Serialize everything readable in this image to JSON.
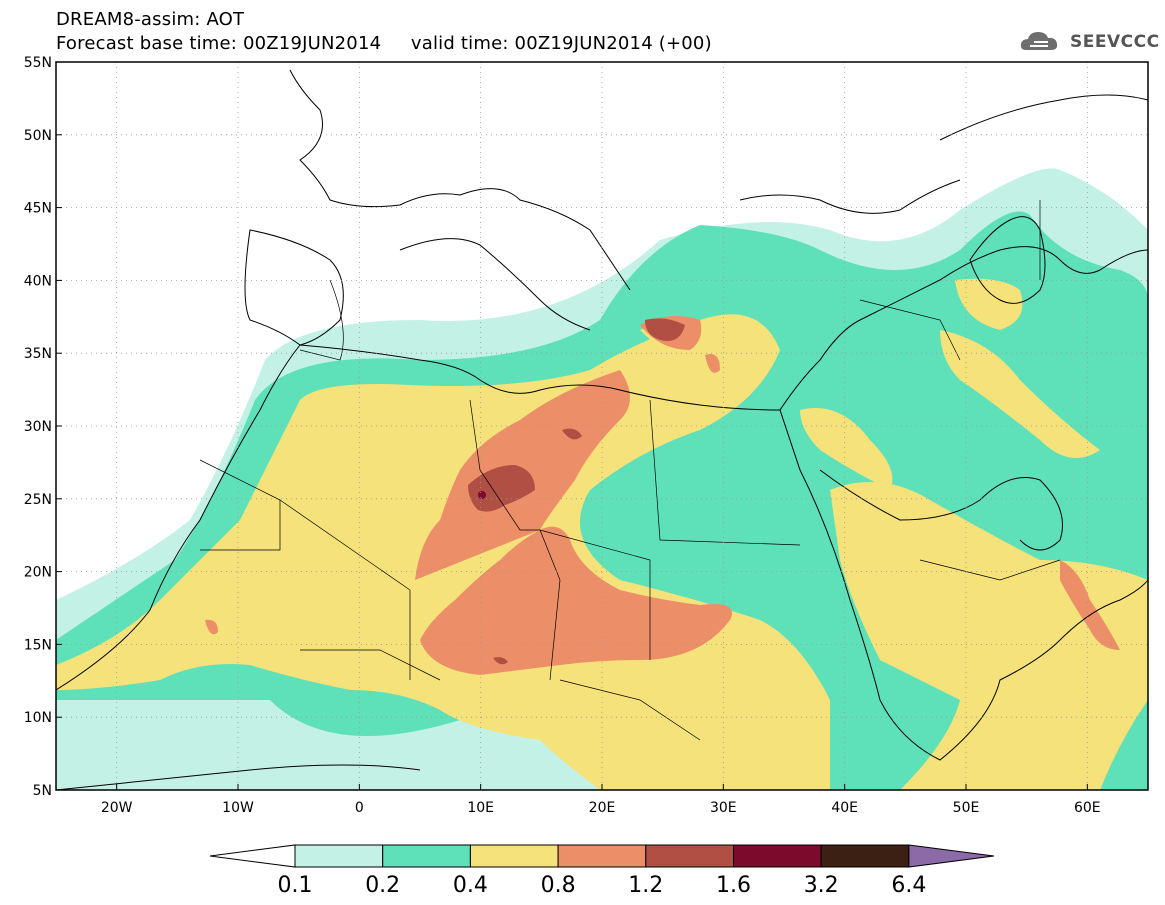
{
  "header": {
    "title_line1": "DREAM8-assim: AOT",
    "title_line2": "Forecast base time: 00Z19JUN2014     valid time: 00Z19JUN2014 (+00)"
  },
  "logo": {
    "text": "SEEVCCC",
    "icon": "cloud-icon"
  },
  "map": {
    "lon_range": [
      -25,
      65
    ],
    "lat_range": [
      5,
      55
    ],
    "lat_ticks": [
      {
        "value": 55,
        "label": "55N"
      },
      {
        "value": 50,
        "label": "50N"
      },
      {
        "value": 45,
        "label": "45N"
      },
      {
        "value": 40,
        "label": "40N"
      },
      {
        "value": 35,
        "label": "35N"
      },
      {
        "value": 30,
        "label": "30N"
      },
      {
        "value": 25,
        "label": "25N"
      },
      {
        "value": 20,
        "label": "20N"
      },
      {
        "value": 15,
        "label": "15N"
      },
      {
        "value": 10,
        "label": "10N"
      },
      {
        "value": 5,
        "label": "5N"
      }
    ],
    "lon_ticks": [
      {
        "value": -20,
        "label": "20W"
      },
      {
        "value": -10,
        "label": "10W"
      },
      {
        "value": 0,
        "label": "0"
      },
      {
        "value": 10,
        "label": "10E"
      },
      {
        "value": 20,
        "label": "20E"
      },
      {
        "value": 30,
        "label": "30E"
      },
      {
        "value": 40,
        "label": "40E"
      },
      {
        "value": 50,
        "label": "50E"
      },
      {
        "value": 60,
        "label": "60E"
      }
    ],
    "grid": "dotted"
  },
  "colorbar": {
    "levels": [
      "0.1",
      "0.2",
      "0.4",
      "0.8",
      "1.2",
      "1.6",
      "3.2",
      "6.4"
    ],
    "colors": [
      "#ffffff",
      "#c4f1e6",
      "#5ee0b8",
      "#f5e27a",
      "#ec8f69",
      "#b04f43",
      "#7c0a2c",
      "#3c2014",
      "#8c6aa8"
    ]
  }
}
